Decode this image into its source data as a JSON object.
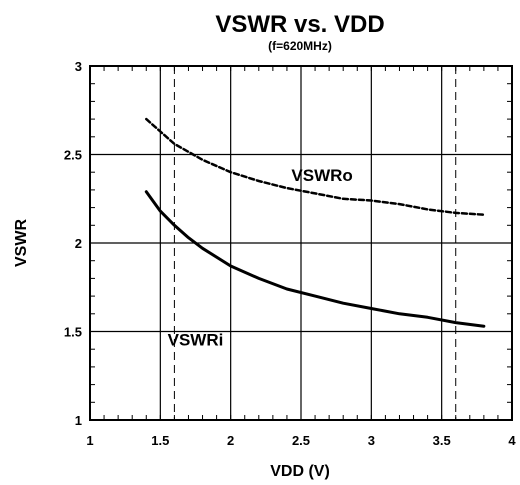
{
  "chart_data": {
    "type": "line",
    "title": "VSWR vs. VDD",
    "subtitle": "(f=620MHz)",
    "xlabel": "VDD (V)",
    "ylabel": "VSWR",
    "xlim": [
      1,
      4
    ],
    "ylim": [
      1,
      3
    ],
    "x_ticks": [
      "1",
      "1.5",
      "2",
      "2.5",
      "3",
      "3.5",
      "4"
    ],
    "y_ticks": [
      "1",
      "1.5",
      "2",
      "2.5",
      "3"
    ],
    "grid": true,
    "reference_lines_x": [
      1.6,
      3.6
    ],
    "annotations": [
      {
        "text": "VSWRo",
        "x": 2.65,
        "y": 2.35
      },
      {
        "text": "VSWRi",
        "x": 1.75,
        "y": 1.42
      }
    ],
    "series": [
      {
        "name": "VSWRo",
        "style": "dashed",
        "x": [
          1.4,
          1.5,
          1.6,
          1.8,
          2.0,
          2.2,
          2.4,
          2.6,
          2.8,
          3.0,
          3.2,
          3.4,
          3.6,
          3.8
        ],
        "y": [
          2.7,
          2.63,
          2.56,
          2.47,
          2.4,
          2.35,
          2.31,
          2.28,
          2.25,
          2.24,
          2.22,
          2.19,
          2.17,
          2.16
        ]
      },
      {
        "name": "VSWRi",
        "style": "solid",
        "x": [
          1.4,
          1.5,
          1.6,
          1.7,
          1.8,
          2.0,
          2.2,
          2.4,
          2.6,
          2.8,
          3.0,
          3.2,
          3.4,
          3.6,
          3.8
        ],
        "y": [
          2.29,
          2.18,
          2.1,
          2.03,
          1.97,
          1.87,
          1.8,
          1.74,
          1.7,
          1.66,
          1.63,
          1.6,
          1.58,
          1.55,
          1.53
        ]
      }
    ]
  }
}
